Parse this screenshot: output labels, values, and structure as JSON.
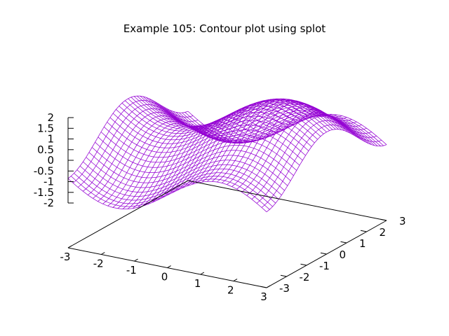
{
  "title": "Example 105: Contour plot using splot",
  "chart_data": {
    "type": "surface",
    "title": "Example 105: Contour plot using splot",
    "xlabel": "",
    "ylabel": "",
    "zlabel": "",
    "x_range": [
      -3,
      3
    ],
    "y_range": [
      -3,
      3
    ],
    "z_range": [
      -2,
      2
    ],
    "x_ticks": [
      "-3",
      "-2",
      "-1",
      "0",
      "1",
      "2",
      "3"
    ],
    "y_ticks": [
      "-3",
      "-2",
      "-1",
      "0",
      "1",
      "2",
      "3"
    ],
    "z_ticks": [
      "2",
      "1.5",
      "1",
      "0.5",
      "0",
      "-0.5",
      "-1",
      "-1.5",
      "-2"
    ],
    "surface": "sin(x) + cos(y)",
    "grid_samples": 41,
    "series": [
      {
        "color": "#9400d3"
      }
    ]
  }
}
